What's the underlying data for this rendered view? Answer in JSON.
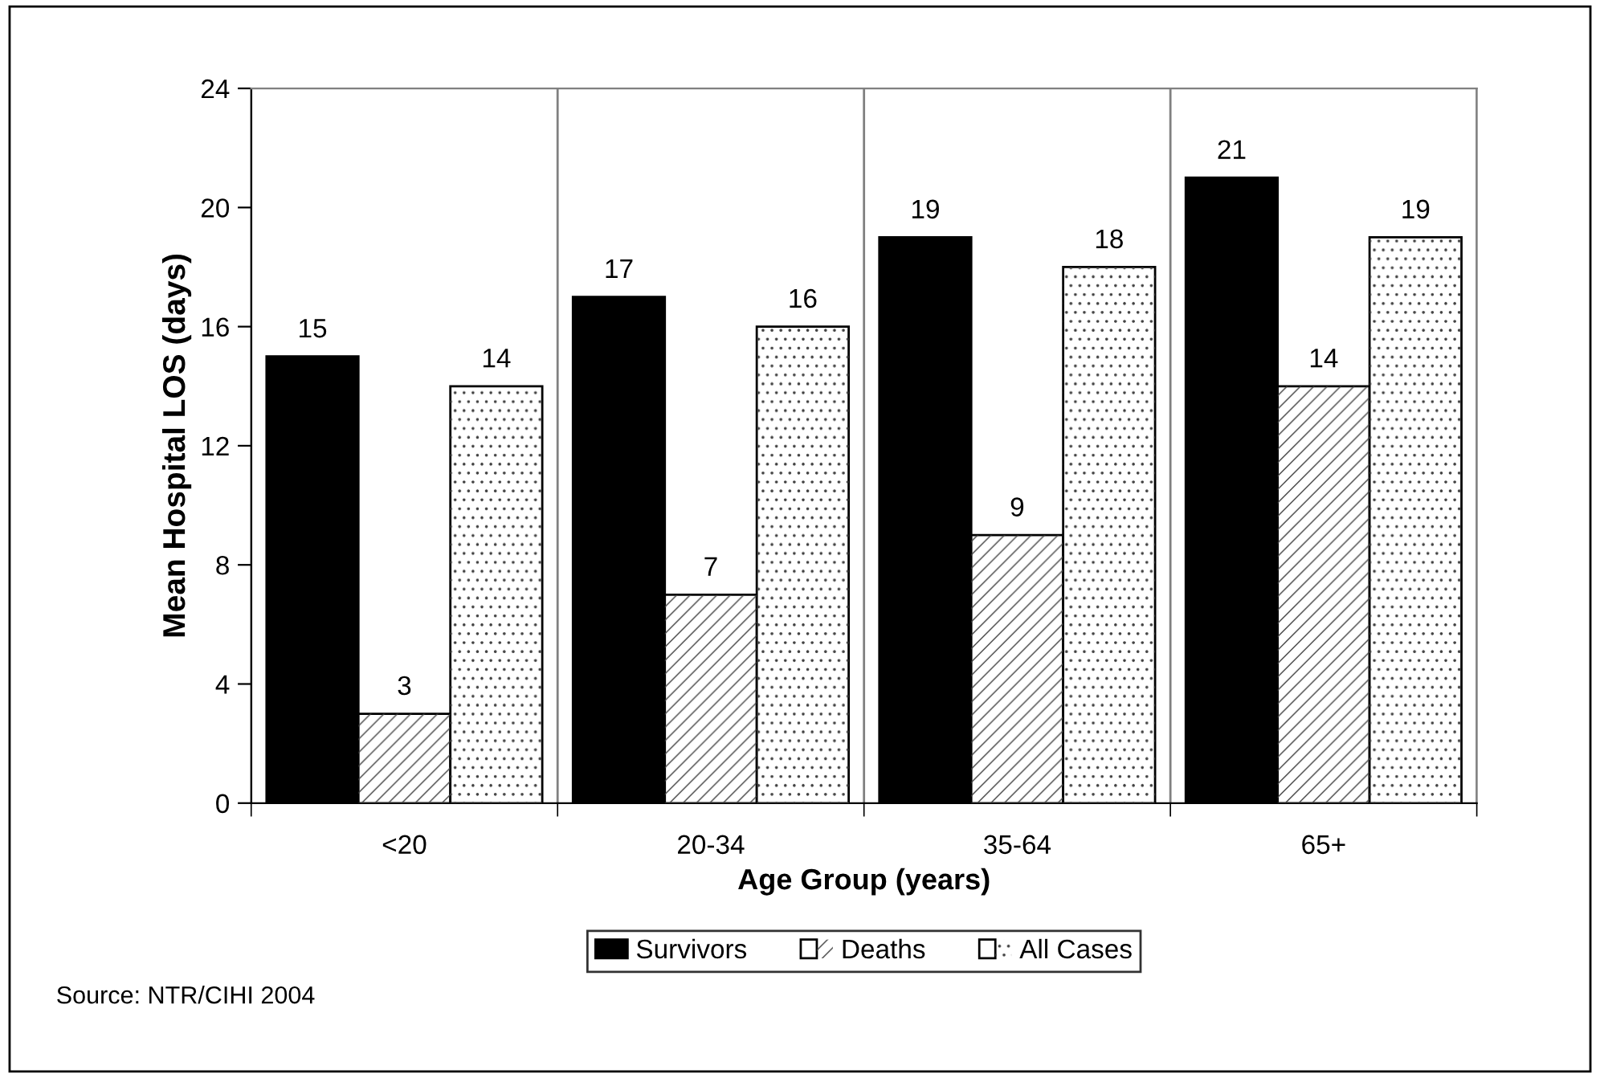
{
  "chart_data": {
    "type": "bar",
    "xlabel": "Age Group (years)",
    "ylabel": "Mean Hospital LOS (days)",
    "categories": [
      "<20",
      "20-34",
      "35-64",
      "65+"
    ],
    "series": [
      {
        "name": "Survivors",
        "color": "#000000",
        "values": [
          15,
          17,
          19,
          21
        ]
      },
      {
        "name": "Deaths",
        "color": "#ffffff",
        "values": [
          3,
          7,
          9,
          14
        ]
      },
      {
        "name": "All Cases",
        "color": "#ffffff",
        "values": [
          14,
          16,
          18,
          19
        ]
      }
    ],
    "ylim": [
      0,
      24
    ],
    "yticks": [
      0,
      4,
      8,
      12,
      16,
      20,
      24
    ],
    "grid": "x",
    "legend": "bottom",
    "data_labels": true,
    "annotations": [
      "Source: NTR/CIHI 2004"
    ]
  }
}
